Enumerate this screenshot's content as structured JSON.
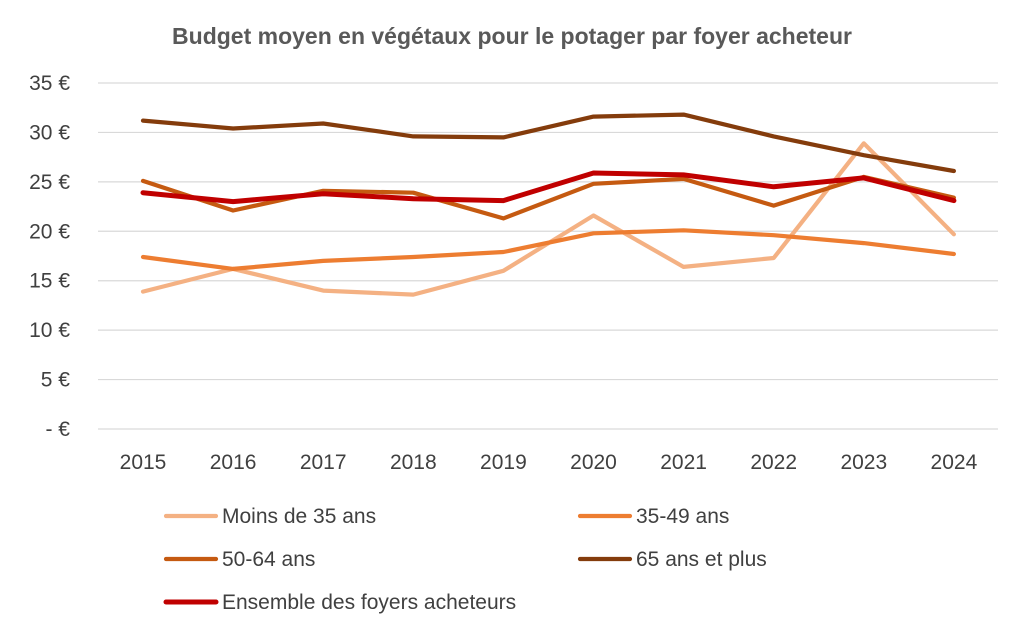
{
  "chart_data": {
    "type": "line",
    "title": "Budget moyen en végétaux pour le potager par foyer acheteur",
    "xlabel": "",
    "ylabel": "",
    "categories": [
      "2015",
      "2016",
      "2017",
      "2018",
      "2019",
      "2020",
      "2021",
      "2022",
      "2023",
      "2024"
    ],
    "y_ticks": [
      "-  €",
      "5 €",
      "10 €",
      "15 €",
      "20 €",
      "25 €",
      "30 €",
      "35 €"
    ],
    "ylim": [
      0,
      35
    ],
    "grid": true,
    "legend_position": "bottom",
    "series": [
      {
        "name": "Moins de 35 ans",
        "color": "#f4b183",
        "values": [
          13.9,
          16.2,
          14.0,
          13.6,
          16.0,
          21.6,
          16.4,
          17.3,
          28.9,
          19.7
        ]
      },
      {
        "name": "35-49 ans",
        "color": "#ed7d31",
        "values": [
          17.4,
          16.2,
          17.0,
          17.4,
          17.9,
          19.8,
          20.1,
          19.6,
          18.8,
          17.7
        ]
      },
      {
        "name": "50-64 ans",
        "color": "#c55a11",
        "values": [
          25.1,
          22.1,
          24.1,
          23.9,
          21.3,
          24.8,
          25.3,
          22.6,
          25.5,
          23.4
        ]
      },
      {
        "name": "65 ans et plus",
        "color": "#843c0c",
        "values": [
          31.2,
          30.4,
          30.9,
          29.6,
          29.5,
          31.6,
          31.8,
          29.6,
          27.7,
          26.1
        ]
      },
      {
        "name": "Ensemble des foyers acheteurs",
        "color": "#c00000",
        "values": [
          23.9,
          23.0,
          23.8,
          23.3,
          23.1,
          25.9,
          25.7,
          24.5,
          25.4,
          23.1
        ]
      }
    ]
  }
}
